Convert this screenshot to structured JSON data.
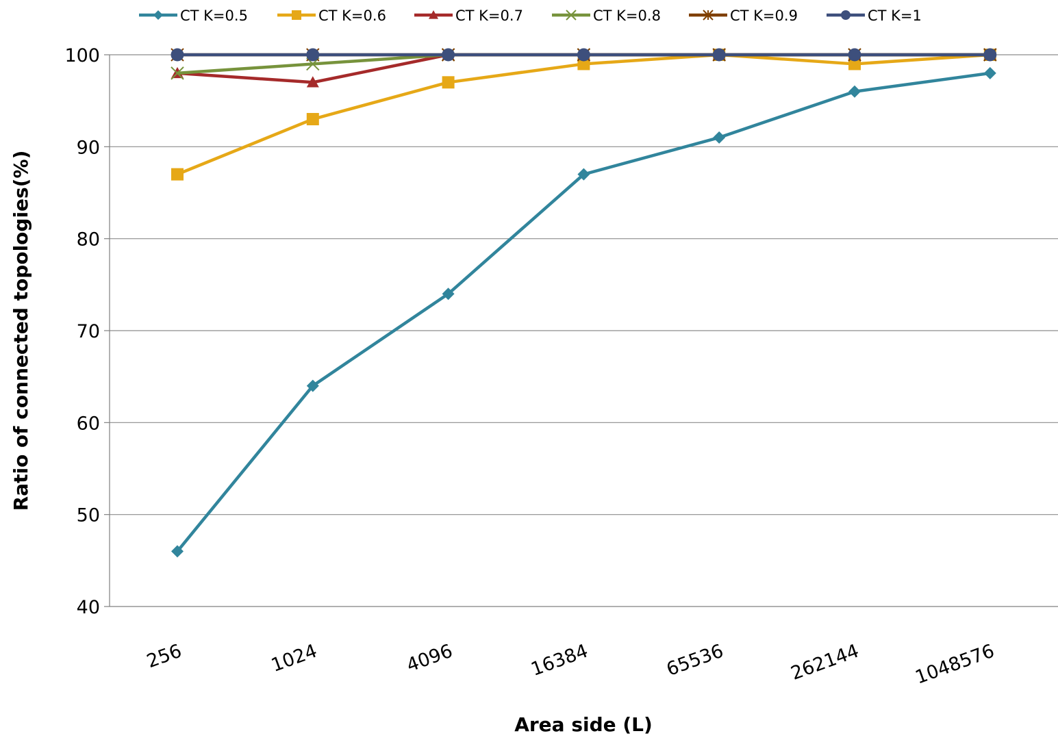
{
  "chart_data": {
    "type": "line",
    "title": "",
    "xlabel": "Area side (L)",
    "ylabel": "Ratio of connected topologies(%)",
    "categories": [
      "256",
      "1024",
      "4096",
      "16384",
      "65536",
      "262144",
      "1048576"
    ],
    "ylim": [
      40,
      100
    ],
    "yticks": [
      40,
      50,
      60,
      70,
      80,
      90,
      100
    ],
    "grid": true,
    "legend_position": "top",
    "series": [
      {
        "name": "CT K=0.5",
        "color": "#31859c",
        "marker": "diamond",
        "values": [
          46,
          64,
          74,
          87,
          91,
          96,
          98
        ]
      },
      {
        "name": "CT K=0.6",
        "color": "#e6a817",
        "marker": "square",
        "values": [
          87,
          93,
          97,
          99,
          100,
          99,
          100
        ]
      },
      {
        "name": "CT K=0.7",
        "color": "#a52a2a",
        "marker": "triangle",
        "values": [
          98,
          97,
          100,
          100,
          100,
          100,
          100
        ]
      },
      {
        "name": "CT K=0.8",
        "color": "#77933c",
        "marker": "x",
        "values": [
          98,
          99,
          100,
          100,
          100,
          100,
          100
        ]
      },
      {
        "name": "CT K=0.9",
        "color": "#7f3f00",
        "marker": "star",
        "values": [
          100,
          100,
          100,
          100,
          100,
          100,
          100
        ]
      },
      {
        "name": "CT K=1",
        "color": "#3d4f7c",
        "marker": "circle",
        "values": [
          100,
          100,
          100,
          100,
          100,
          100,
          100
        ]
      }
    ]
  }
}
